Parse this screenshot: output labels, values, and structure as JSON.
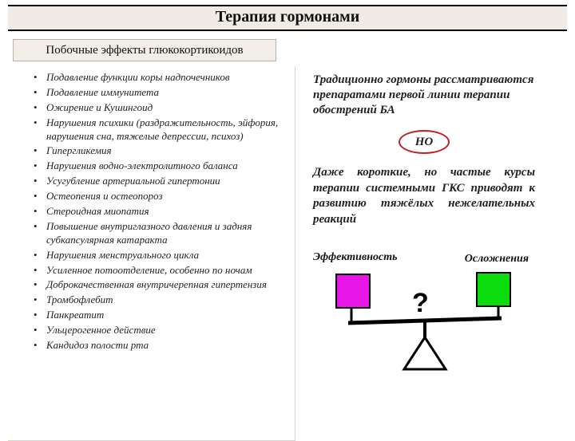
{
  "title": "Терапия гормонами",
  "subtitle": "Побочные эффекты глюкокортикоидов",
  "side_effects": [
    "Подавление функции коры надпочечников",
    "Подавление иммунитета",
    "Ожирение и Кушингоид",
    "Нарушения психики (раздражительность, эйфория, нарушения сна, тяжелые депрессии, психоз)",
    "Гипергликемия",
    "Нарушения водно-электролитного баланса",
    "Усугубление артериальной гипертонии",
    "Остеопения и остеопороз",
    "Стероидная миопатия",
    "Повышение внутриглазного давления и задняя субкапсулярная катаракта",
    "Нарушения менструального цикла",
    "Усиленное потоотделение, особенно по ночам",
    "Доброкачественная внутричерепная гипертензия",
    "Тромбофлебит",
    "Панкреатит",
    "Ульцерогенное действие",
    "Кандидоз полости рта"
  ],
  "right": {
    "para1": "Традиционно гормоны рассматриваются препаратами первой линии терапии обострений БА",
    "but": "НО",
    "para2": "Даже короткие, но частые курсы терапии системными ГКС приводят к развитию тяжёлых нежелательных реакций",
    "label_eff": "Эффективность",
    "label_comp": "Осложнения",
    "qmark": "?"
  },
  "colors": {
    "eff_box": "#e815e8",
    "comp_box": "#0bdc0b",
    "oval_border": "#c02020",
    "title_bg": "#f0ebe4",
    "sub_bg": "#f2ede6"
  }
}
